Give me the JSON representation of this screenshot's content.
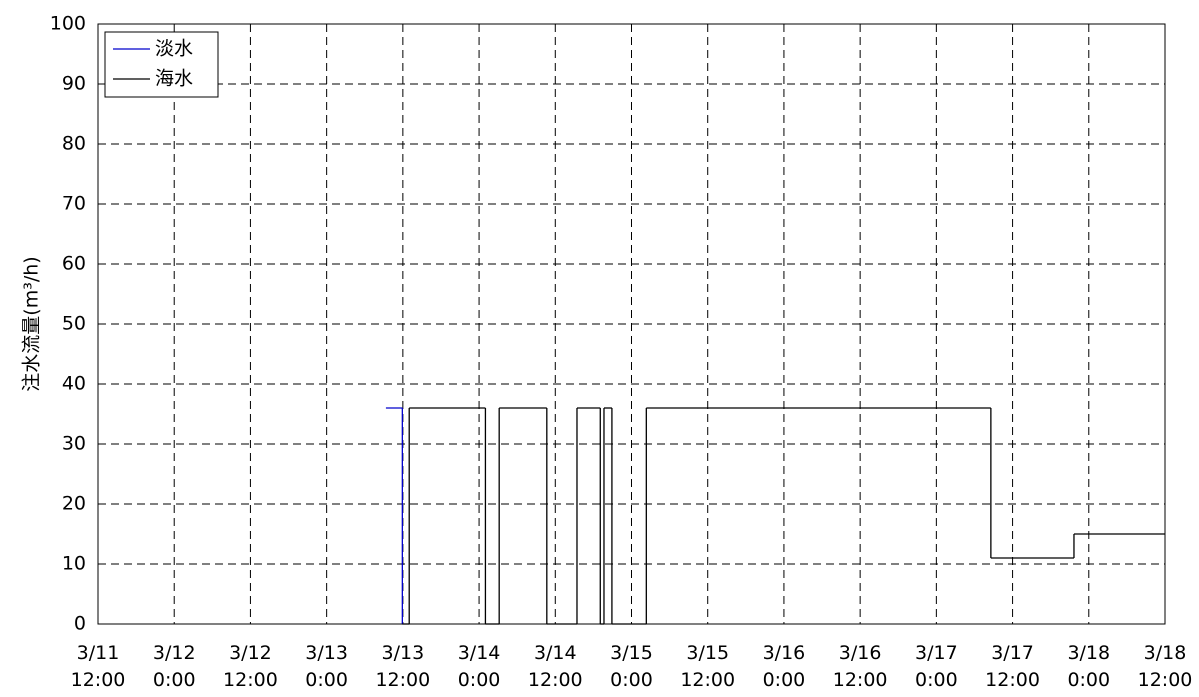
{
  "chart_data": {
    "type": "line",
    "step": "post",
    "ylabel": "注水流量(m³/h)",
    "xlim": [
      "3/11 12:00",
      "3/18 12:00"
    ],
    "xticks": [
      "3/11 12:00",
      "3/12 0:00",
      "3/12 12:00",
      "3/13 0:00",
      "3/13 12:00",
      "3/14 0:00",
      "3/14 12:00",
      "3/15 0:00",
      "3/15 12:00",
      "3/16 0:00",
      "3/16 12:00",
      "3/17 0:00",
      "3/17 12:00",
      "3/18 0:00",
      "3/18 12:00"
    ],
    "ylim": [
      0,
      100
    ],
    "yticks": [
      0,
      10,
      20,
      30,
      40,
      50,
      60,
      70,
      80,
      90,
      100
    ],
    "grid": true,
    "legend": "upper left",
    "series": [
      {
        "name": "淡水",
        "color": "#0000cc",
        "x": [
          "3/13 9:20",
          "3/13 11:55"
        ],
        "values": [
          36,
          0
        ]
      },
      {
        "name": "海水",
        "color": "#000000",
        "x": [
          "3/13 11:55",
          "3/13 13:00",
          "3/14 1:00",
          "3/14 3:10",
          "3/14 10:40",
          "3/14 15:25",
          "3/14 19:05",
          "3/14 19:40",
          "3/14 20:55",
          "3/15 2:20",
          "3/17 8:35",
          "3/17 21:40",
          "3/18 12:00"
        ],
        "values": [
          0,
          36,
          0,
          36,
          0,
          36,
          0,
          36,
          0,
          36,
          11,
          15,
          15
        ]
      }
    ]
  }
}
